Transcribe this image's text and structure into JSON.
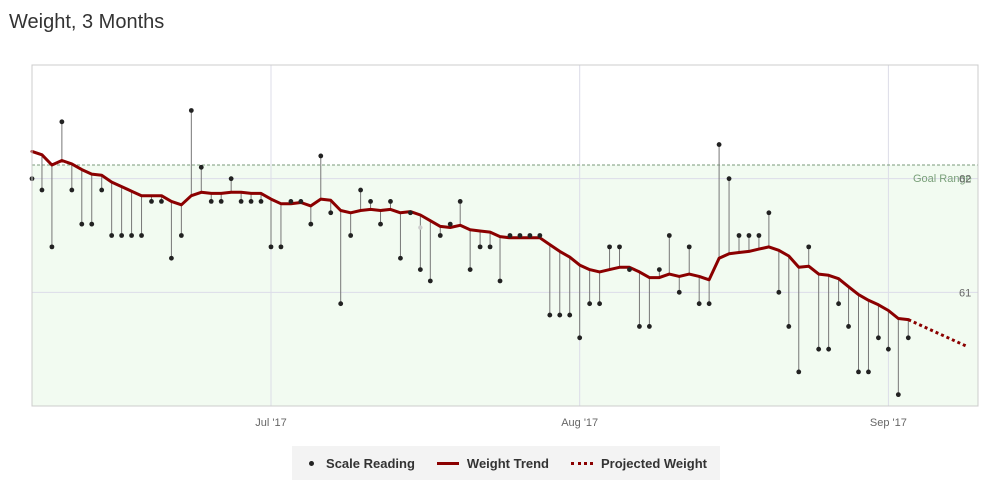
{
  "title": "Weight, 3 Months",
  "legend": {
    "scale": "Scale Reading",
    "trend": "Weight Trend",
    "projected": "Projected Weight"
  },
  "colors": {
    "trend": "#8b0000",
    "reading": "#222222",
    "goal_fill": "#f2fbf1",
    "grid": "#dcdce8"
  },
  "chart_data": {
    "type": "line",
    "x_range_days": [
      "2017-06-07",
      "2017-09-10"
    ],
    "ylim": [
      60,
      63
    ],
    "yticks": [
      61,
      62
    ],
    "xticks": [
      {
        "date": "2017-07-01",
        "label": "Jul '17"
      },
      {
        "date": "2017-08-01",
        "label": "Aug '17"
      },
      {
        "date": "2017-09-01",
        "label": "Sep '17"
      }
    ],
    "goal": {
      "label": "Goal Range",
      "value": 62.12
    },
    "series": [
      {
        "name": "Scale Reading",
        "dates": [
          "2017-06-07",
          "2017-06-08",
          "2017-06-09",
          "2017-06-10",
          "2017-06-11",
          "2017-06-12",
          "2017-06-13",
          "2017-06-14",
          "2017-06-15",
          "2017-06-16",
          "2017-06-17",
          "2017-06-18",
          "2017-06-19",
          "2017-06-20",
          "2017-06-21",
          "2017-06-22",
          "2017-06-23",
          "2017-06-24",
          "2017-06-25",
          "2017-06-26",
          "2017-06-27",
          "2017-06-28",
          "2017-06-29",
          "2017-06-30",
          "2017-07-01",
          "2017-07-02",
          "2017-07-03",
          "2017-07-04",
          "2017-07-05",
          "2017-07-06",
          "2017-07-07",
          "2017-07-08",
          "2017-07-09",
          "2017-07-10",
          "2017-07-11",
          "2017-07-12",
          "2017-07-13",
          "2017-07-14",
          "2017-07-15",
          "2017-07-16",
          "2017-07-17",
          "2017-07-18",
          "2017-07-19",
          "2017-07-20",
          "2017-07-21",
          "2017-07-22",
          "2017-07-23",
          "2017-07-24",
          "2017-07-25",
          "2017-07-26",
          "2017-07-27",
          "2017-07-28",
          "2017-07-29",
          "2017-07-30",
          "2017-07-31",
          "2017-08-01",
          "2017-08-02",
          "2017-08-03",
          "2017-08-04",
          "2017-08-05",
          "2017-08-06",
          "2017-08-07",
          "2017-08-08",
          "2017-08-09",
          "2017-08-10",
          "2017-08-11",
          "2017-08-12",
          "2017-08-13",
          "2017-08-14",
          "2017-08-15",
          "2017-08-16",
          "2017-08-17",
          "2017-08-18",
          "2017-08-19",
          "2017-08-20",
          "2017-08-21",
          "2017-08-22",
          "2017-08-23",
          "2017-08-24",
          "2017-08-25",
          "2017-08-26",
          "2017-08-27",
          "2017-08-28",
          "2017-08-29",
          "2017-08-30",
          "2017-08-31",
          "2017-09-01",
          "2017-09-02",
          "2017-09-03"
        ],
        "values": [
          62.0,
          61.9,
          61.4,
          62.5,
          61.9,
          61.6,
          61.6,
          61.9,
          61.5,
          61.5,
          61.5,
          61.5,
          61.8,
          61.8,
          61.3,
          61.5,
          62.6,
          62.1,
          61.8,
          61.8,
          62.0,
          61.8,
          61.8,
          61.8,
          61.4,
          61.4,
          61.8,
          61.8,
          61.6,
          62.2,
          61.7,
          60.9,
          61.5,
          61.9,
          61.8,
          61.6,
          61.8,
          61.3,
          61.7,
          61.2,
          61.1,
          61.5,
          61.6,
          61.8,
          61.2,
          61.4,
          61.4,
          61.1,
          61.5,
          61.5,
          61.5,
          61.5,
          60.8,
          60.8,
          60.8,
          60.6,
          60.9,
          60.9,
          61.4,
          61.4,
          61.2,
          60.7,
          60.7,
          61.2,
          61.5,
          61.0,
          61.4,
          60.9,
          60.9,
          62.3,
          62.0,
          61.5,
          61.5,
          61.5,
          61.7,
          61.0,
          60.7,
          60.3,
          61.4,
          60.5,
          60.5,
          60.9,
          60.7,
          60.3,
          60.3,
          60.6,
          60.5,
          60.1,
          60.6
        ],
        "outliers": [
          {
            "date": "2017-07-16",
            "value": 61.57
          }
        ]
      },
      {
        "name": "Weight Trend",
        "dates": [
          "2017-06-07",
          "2017-06-08",
          "2017-06-09",
          "2017-06-10",
          "2017-06-11",
          "2017-06-12",
          "2017-06-13",
          "2017-06-14",
          "2017-06-15",
          "2017-06-16",
          "2017-06-17",
          "2017-06-18",
          "2017-06-19",
          "2017-06-20",
          "2017-06-21",
          "2017-06-22",
          "2017-06-23",
          "2017-06-24",
          "2017-06-25",
          "2017-06-26",
          "2017-06-27",
          "2017-06-28",
          "2017-06-29",
          "2017-06-30",
          "2017-07-01",
          "2017-07-02",
          "2017-07-03",
          "2017-07-04",
          "2017-07-05",
          "2017-07-06",
          "2017-07-07",
          "2017-07-08",
          "2017-07-09",
          "2017-07-10",
          "2017-07-11",
          "2017-07-12",
          "2017-07-13",
          "2017-07-14",
          "2017-07-15",
          "2017-07-16",
          "2017-07-17",
          "2017-07-18",
          "2017-07-19",
          "2017-07-20",
          "2017-07-21",
          "2017-07-22",
          "2017-07-23",
          "2017-07-24",
          "2017-07-25",
          "2017-07-26",
          "2017-07-27",
          "2017-07-28",
          "2017-07-29",
          "2017-07-30",
          "2017-07-31",
          "2017-08-01",
          "2017-08-02",
          "2017-08-03",
          "2017-08-04",
          "2017-08-05",
          "2017-08-06",
          "2017-08-07",
          "2017-08-08",
          "2017-08-09",
          "2017-08-10",
          "2017-08-11",
          "2017-08-12",
          "2017-08-13",
          "2017-08-14",
          "2017-08-15",
          "2017-08-16",
          "2017-08-17",
          "2017-08-18",
          "2017-08-19",
          "2017-08-20",
          "2017-08-21",
          "2017-08-22",
          "2017-08-23",
          "2017-08-24",
          "2017-08-25",
          "2017-08-26",
          "2017-08-27",
          "2017-08-28",
          "2017-08-29",
          "2017-08-30",
          "2017-08-31",
          "2017-09-01",
          "2017-09-02",
          "2017-09-03"
        ],
        "values": [
          62.24,
          62.21,
          62.12,
          62.16,
          62.13,
          62.08,
          62.04,
          62.03,
          61.97,
          61.93,
          61.89,
          61.85,
          61.85,
          61.85,
          61.8,
          61.77,
          61.85,
          61.88,
          61.87,
          61.87,
          61.88,
          61.88,
          61.87,
          61.87,
          61.82,
          61.78,
          61.78,
          61.79,
          61.76,
          61.82,
          61.81,
          61.72,
          61.7,
          61.72,
          61.73,
          61.72,
          61.73,
          61.7,
          61.71,
          61.68,
          61.63,
          61.58,
          61.57,
          61.59,
          61.55,
          61.54,
          61.53,
          61.49,
          61.48,
          61.48,
          61.48,
          61.48,
          61.42,
          61.36,
          61.31,
          61.24,
          61.2,
          61.18,
          61.2,
          61.22,
          61.22,
          61.18,
          61.13,
          61.13,
          61.16,
          61.14,
          61.16,
          61.14,
          61.11,
          61.3,
          61.34,
          61.35,
          61.36,
          61.38,
          61.4,
          61.37,
          61.32,
          61.22,
          61.23,
          61.16,
          61.15,
          61.12,
          61.05,
          60.98,
          60.93,
          60.89,
          60.84,
          60.77,
          60.76
        ]
      },
      {
        "name": "Projected Weight",
        "dates": [
          "2017-09-03",
          "2017-09-09"
        ],
        "values": [
          60.76,
          60.52
        ]
      }
    ]
  }
}
